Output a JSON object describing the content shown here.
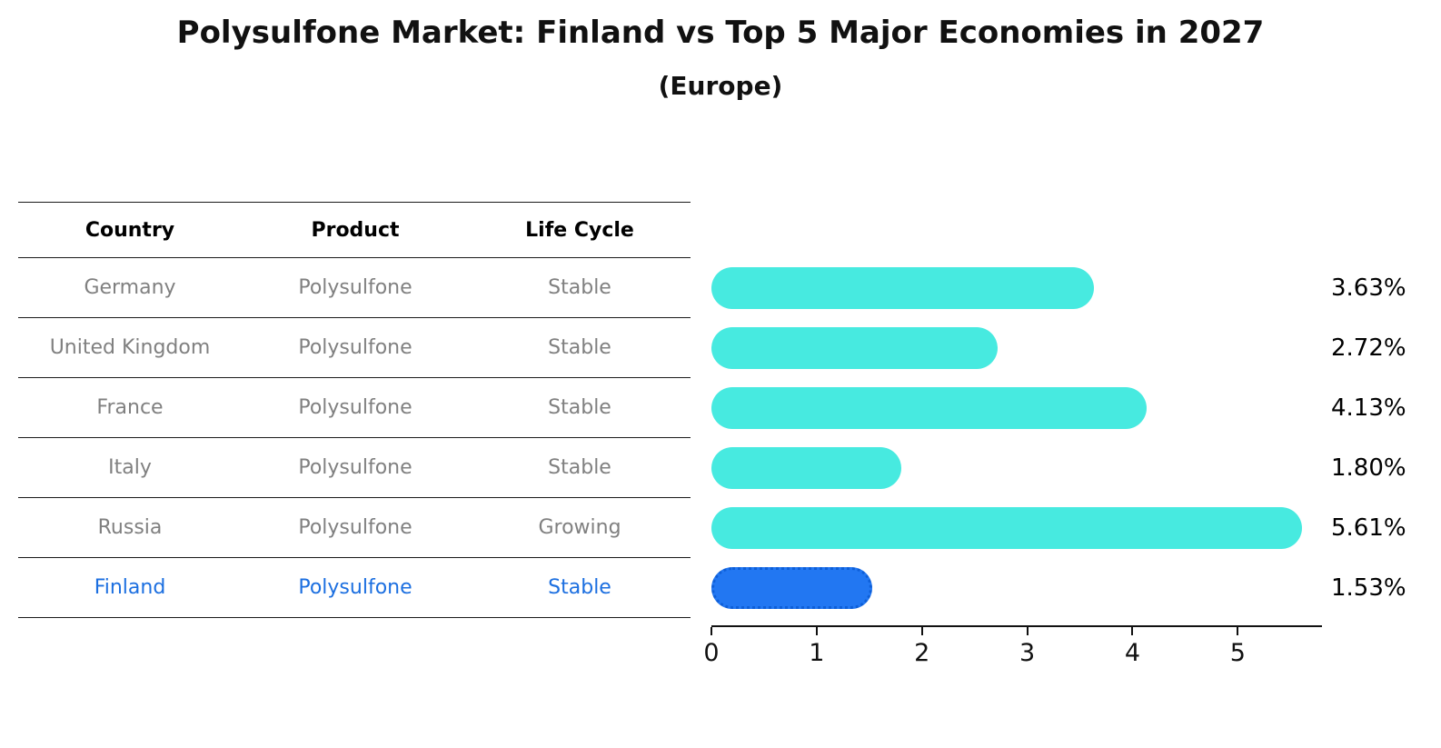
{
  "title": "Polysulfone Market: Finland vs Top 5 Major Economies in 2027",
  "subtitle": "(Europe)",
  "table": {
    "headers": [
      "Country",
      "Product",
      "Life Cycle"
    ],
    "rows": [
      {
        "country": "Germany",
        "product": "Polysulfone",
        "life_cycle": "Stable",
        "label": "3.63%"
      },
      {
        "country": "United Kingdom",
        "product": "Polysulfone",
        "life_cycle": "Stable",
        "label": "2.72%"
      },
      {
        "country": "France",
        "product": "Polysulfone",
        "life_cycle": "Stable",
        "label": "4.13%"
      },
      {
        "country": "Italy",
        "product": "Polysulfone",
        "life_cycle": "Stable",
        "label": "1.80%"
      },
      {
        "country": "Russia",
        "product": "Polysulfone",
        "life_cycle": "Growing",
        "label": "5.61%"
      },
      {
        "country": "Finland",
        "product": "Polysulfone",
        "life_cycle": "Stable",
        "label": "1.53%"
      }
    ]
  },
  "chart_data": {
    "type": "bar",
    "orientation": "horizontal",
    "title": "Polysulfone Market: Finland vs Top 5 Major Economies in 2027",
    "subtitle": "(Europe)",
    "categories": [
      "Germany",
      "United Kingdom",
      "France",
      "Italy",
      "Russia",
      "Finland"
    ],
    "values": [
      3.63,
      2.72,
      4.13,
      1.8,
      5.61,
      1.53
    ],
    "value_labels": [
      "3.63%",
      "2.72%",
      "4.13%",
      "1.80%",
      "5.61%",
      "1.53%"
    ],
    "x_ticks": [
      0,
      1,
      2,
      3,
      4,
      5
    ],
    "xlim": [
      0,
      5.8
    ],
    "highlight_index": 5,
    "grid": false,
    "legend": false
  },
  "colors": {
    "bar": "#47EAE0",
    "highlight_bar": "#2277F2",
    "highlight_border": "#0E5FD8",
    "highlight_text": "#1C6FE0",
    "row_text": "#808080",
    "header_text": "#000000"
  }
}
